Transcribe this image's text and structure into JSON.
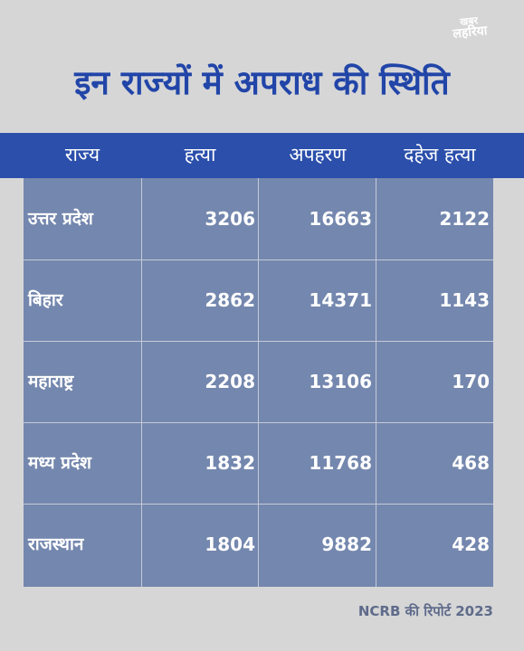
{
  "logo": {
    "line1": "खबर",
    "line2": "लहरिया"
  },
  "title": "इन राज्यों में अपराध की स्थिति",
  "table": {
    "headers": [
      "राज्य",
      "हत्या",
      "अपहरण",
      "दहेज हत्या"
    ],
    "rows": [
      {
        "state": "उत्तर प्रदेश",
        "murder": "3206",
        "kidnapping": "16663",
        "dowry_death": "2122"
      },
      {
        "state": "बिहार",
        "murder": "2862",
        "kidnapping": "14371",
        "dowry_death": "1143"
      },
      {
        "state": "महाराष्ट्र",
        "murder": "2208",
        "kidnapping": "13106",
        "dowry_death": "170"
      },
      {
        "state": "मध्य प्रदेश",
        "murder": "1832",
        "kidnapping": "11768",
        "dowry_death": "468"
      },
      {
        "state": "राजस्थान",
        "murder": "1804",
        "kidnapping": "9882",
        "dowry_death": "428"
      }
    ]
  },
  "footer": {
    "source": "NCRB की रिपोर्ट",
    "year": "2023"
  },
  "colors": {
    "background": "#d6d6d7",
    "title": "#2145a8",
    "header_band": "#2b4fab",
    "table_body": "#7487ae",
    "footer_text": "#5f6b8a"
  }
}
